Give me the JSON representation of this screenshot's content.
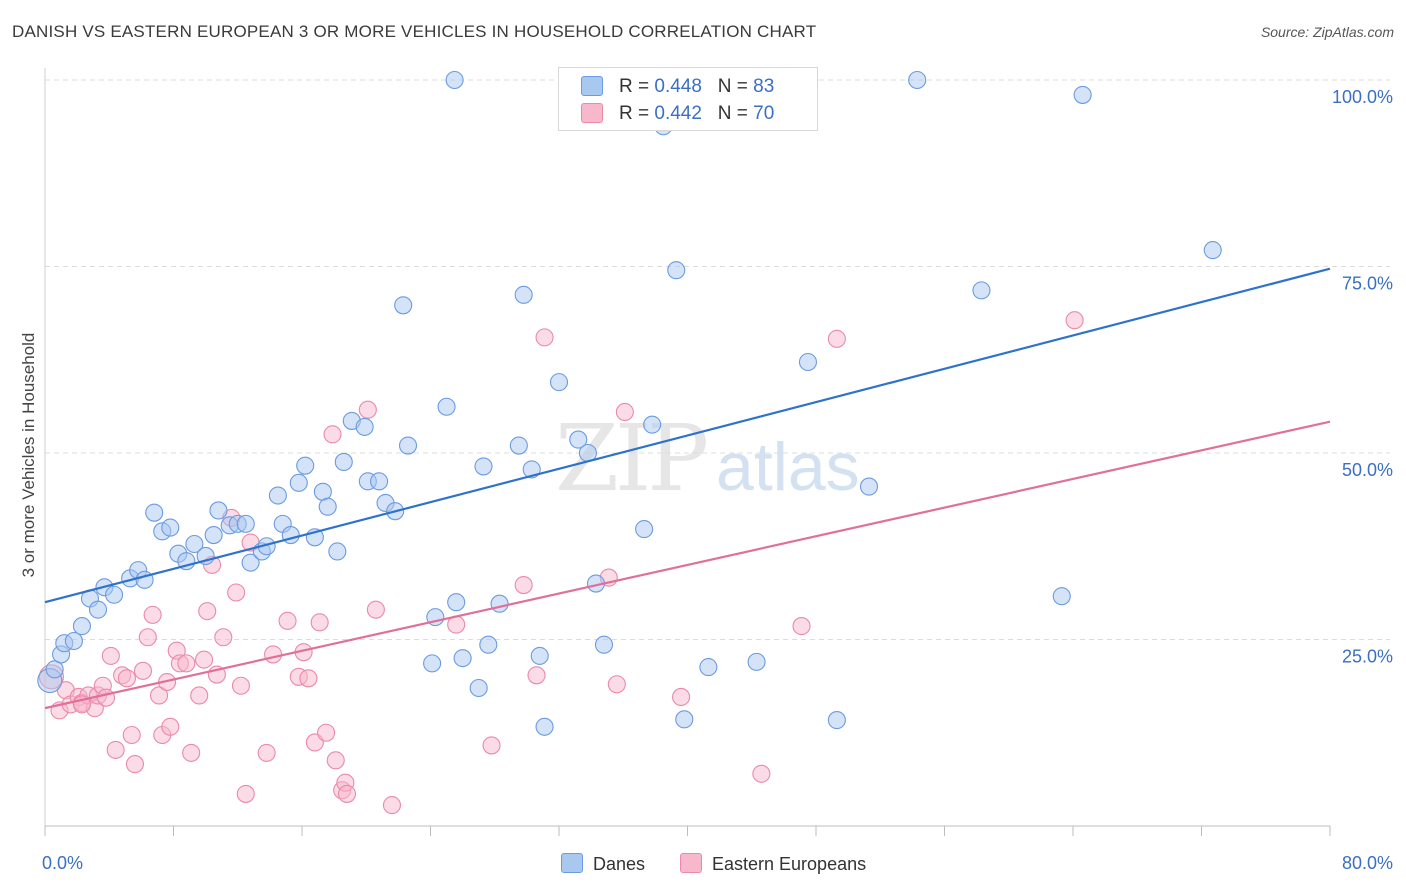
{
  "title": "DANISH VS EASTERN EUROPEAN 3 OR MORE VEHICLES IN HOUSEHOLD CORRELATION CHART",
  "source": "Source: ZipAtlas.com",
  "watermark": {
    "zip": "ZIP",
    "atlas": "atlas"
  },
  "legend_top": {
    "rows": [
      {
        "r_label": "R = ",
        "r_value": "0.448",
        "n_label": "N = ",
        "n_value": "83",
        "color": "#a9c8f0"
      },
      {
        "r_label": "R = ",
        "r_value": "0.442",
        "n_label": "N = ",
        "n_value": "70",
        "color": "#f7b8cc"
      }
    ]
  },
  "legend_bottom": [
    {
      "label": "Danes",
      "color": "#a9c8f0"
    },
    {
      "label": "Eastern Europeans",
      "color": "#f7b8cc"
    }
  ],
  "colors": {
    "danes_fill": "#a9c8f0",
    "danes_stroke": "#6b9be0",
    "danes_line": "#2f72cc",
    "ee_fill": "#f7b8cc",
    "ee_stroke": "#ea8aa8",
    "ee_line": "#e0709a",
    "tick_label": "#3a6fc4"
  },
  "chart_data": {
    "type": "scatter",
    "title": "DANISH VS EASTERN EUROPEAN 3 OR MORE VEHICLES IN HOUSEHOLD CORRELATION CHART",
    "xlabel": "",
    "ylabel": "3 or more Vehicles in Household",
    "xlim": [
      0,
      80
    ],
    "ylim": [
      0,
      100
    ],
    "x_tick_labels": [
      "0.0%",
      "80.0%"
    ],
    "y_tick_labels": [
      "25.0%",
      "50.0%",
      "75.0%",
      "100.0%"
    ],
    "y_ticks": [
      25,
      50,
      75,
      100
    ],
    "grid": "horizontal dashed",
    "legend_placement": "top-center",
    "series": [
      {
        "name": "Danes",
        "trend": {
          "x": [
            0,
            80
          ],
          "y": [
            30.0,
            74.7
          ]
        },
        "points": [
          [
            0.3,
            19.5
          ],
          [
            0.6,
            21
          ],
          [
            1,
            23
          ],
          [
            1.2,
            24.5
          ],
          [
            1.8,
            24.8
          ],
          [
            2.3,
            26.8
          ],
          [
            2.8,
            30.5
          ],
          [
            3.3,
            29
          ],
          [
            3.7,
            32
          ],
          [
            4.3,
            31
          ],
          [
            5.3,
            33.2
          ],
          [
            5.8,
            34.3
          ],
          [
            6.2,
            33
          ],
          [
            6.8,
            42
          ],
          [
            7.3,
            39.5
          ],
          [
            7.8,
            40
          ],
          [
            8.3,
            36.5
          ],
          [
            8.8,
            35.5
          ],
          [
            9.3,
            37.8
          ],
          [
            10,
            36.2
          ],
          [
            10.5,
            39
          ],
          [
            10.8,
            42.3
          ],
          [
            11.5,
            40.3
          ],
          [
            12,
            40.5
          ],
          [
            12.5,
            40.5
          ],
          [
            12.8,
            35.3
          ],
          [
            13.5,
            36.8
          ],
          [
            13.8,
            37.5
          ],
          [
            14.5,
            44.3
          ],
          [
            14.8,
            40.5
          ],
          [
            15.3,
            39
          ],
          [
            15.8,
            46
          ],
          [
            16.2,
            48.3
          ],
          [
            16.8,
            38.7
          ],
          [
            17.3,
            44.8
          ],
          [
            17.6,
            42.8
          ],
          [
            18.2,
            36.8
          ],
          [
            18.6,
            48.8
          ],
          [
            19.1,
            54.3
          ],
          [
            19.9,
            53.5
          ],
          [
            20.1,
            46.2
          ],
          [
            20.8,
            46.2
          ],
          [
            21.2,
            43.3
          ],
          [
            21.8,
            42.2
          ],
          [
            22.3,
            69.8
          ],
          [
            22.6,
            51
          ],
          [
            24.3,
            28
          ],
          [
            24.1,
            21.8
          ],
          [
            25,
            56.2
          ],
          [
            25.6,
            30
          ],
          [
            26,
            22.5
          ],
          [
            27,
            18.5
          ],
          [
            27.3,
            48.2
          ],
          [
            27.6,
            24.3
          ],
          [
            28.3,
            29.8
          ],
          [
            29.5,
            51
          ],
          [
            29.8,
            71.2
          ],
          [
            30.3,
            47.8
          ],
          [
            30.8,
            22.8
          ],
          [
            31.1,
            13.3
          ],
          [
            32,
            59.5
          ],
          [
            33.2,
            51.8
          ],
          [
            33.8,
            50
          ],
          [
            34.3,
            32.5
          ],
          [
            34.8,
            24.3
          ],
          [
            37.3,
            39.8
          ],
          [
            37.8,
            53.8
          ],
          [
            38.5,
            93.8
          ],
          [
            39.3,
            74.5
          ],
          [
            39.8,
            14.3
          ],
          [
            41.3,
            21.3
          ],
          [
            44.3,
            22
          ],
          [
            47.5,
            62.2
          ],
          [
            49.3,
            14.2
          ],
          [
            51.3,
            45.5
          ],
          [
            54.3,
            100
          ],
          [
            58.3,
            71.8
          ],
          [
            63.3,
            30.8
          ],
          [
            64.6,
            98
          ],
          [
            72.7,
            77.2
          ],
          [
            25.5,
            100
          ],
          [
            42.8,
            100
          ],
          [
            44.3,
            100
          ]
        ]
      },
      {
        "name": "Eastern Europeans",
        "trend": {
          "x": [
            0,
            80
          ],
          "y": [
            15.8,
            54.2
          ]
        },
        "points": [
          [
            0.4,
            20
          ],
          [
            0.9,
            15.5
          ],
          [
            1.3,
            18.2
          ],
          [
            1.6,
            16.3
          ],
          [
            2.1,
            17.3
          ],
          [
            2.3,
            16.5
          ],
          [
            2.7,
            17.5
          ],
          [
            3.1,
            15.8
          ],
          [
            3.3,
            17.5
          ],
          [
            3.6,
            18.8
          ],
          [
            3.8,
            17.2
          ],
          [
            4.1,
            22.8
          ],
          [
            4.4,
            10.2
          ],
          [
            4.8,
            20.2
          ],
          [
            5.1,
            19.8
          ],
          [
            5.4,
            12.2
          ],
          [
            5.6,
            8.3
          ],
          [
            6.1,
            20.8
          ],
          [
            6.4,
            25.3
          ],
          [
            6.7,
            28.3
          ],
          [
            7.1,
            17.5
          ],
          [
            7.3,
            12.2
          ],
          [
            7.6,
            19.3
          ],
          [
            7.8,
            13.3
          ],
          [
            8.2,
            23.5
          ],
          [
            8.4,
            21.8
          ],
          [
            8.8,
            21.8
          ],
          [
            9.1,
            9.8
          ],
          [
            9.6,
            17.5
          ],
          [
            9.9,
            22.3
          ],
          [
            10.1,
            28.8
          ],
          [
            10.4,
            35
          ],
          [
            10.7,
            20.3
          ],
          [
            11.1,
            25.3
          ],
          [
            11.6,
            41.3
          ],
          [
            11.9,
            31.3
          ],
          [
            12.2,
            18.8
          ],
          [
            12.5,
            4.3
          ],
          [
            12.8,
            38
          ],
          [
            13.8,
            9.8
          ],
          [
            14.2,
            23
          ],
          [
            15.1,
            27.5
          ],
          [
            15.8,
            20
          ],
          [
            16.1,
            23.3
          ],
          [
            16.4,
            19.8
          ],
          [
            16.8,
            11.2
          ],
          [
            17.1,
            27.3
          ],
          [
            17.5,
            12.5
          ],
          [
            17.9,
            52.5
          ],
          [
            18.1,
            8.8
          ],
          [
            18.5,
            4.8
          ],
          [
            18.7,
            5.8
          ],
          [
            18.8,
            4.3
          ],
          [
            20.1,
            55.8
          ],
          [
            20.6,
            29
          ],
          [
            21.6,
            2.8
          ],
          [
            25.6,
            27
          ],
          [
            27.8,
            10.8
          ],
          [
            29.8,
            32.3
          ],
          [
            30.6,
            20.2
          ],
          [
            31.1,
            65.5
          ],
          [
            35.1,
            33.3
          ],
          [
            35.6,
            19
          ],
          [
            36.1,
            55.5
          ],
          [
            39.6,
            17.3
          ],
          [
            44.6,
            7
          ],
          [
            47.1,
            26.8
          ],
          [
            49.3,
            65.3
          ],
          [
            64.1,
            67.8
          ],
          [
            2.3,
            16.3
          ]
        ]
      }
    ]
  }
}
